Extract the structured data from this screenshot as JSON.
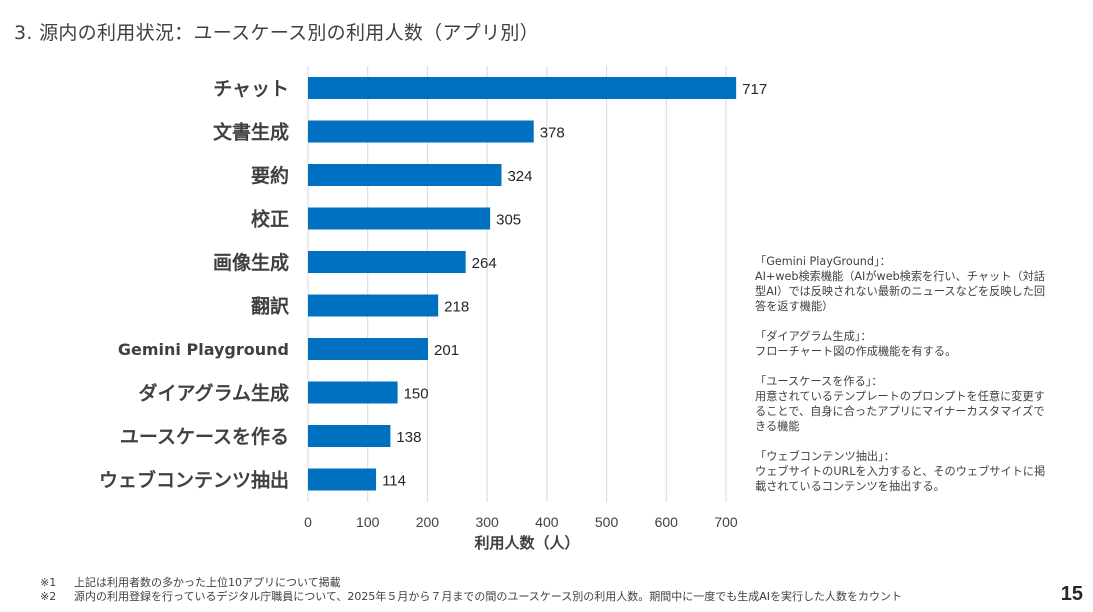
{
  "slide": {
    "title": "3. 源内の利用状況：ユースケース別の利用人数（アプリ別）",
    "page_number": "15",
    "bar_color": "#0070C0"
  },
  "chart_data": {
    "type": "bar",
    "orientation": "horizontal",
    "title": "",
    "categories": [
      "チャット",
      "文書生成",
      "要約",
      "校正",
      "画像生成",
      "翻訳",
      "Gemini Playground",
      "ダイアグラム生成",
      "ユースケースを作る",
      "ウェブコンテンツ抽出"
    ],
    "values": [
      717,
      378,
      324,
      305,
      264,
      218,
      201,
      150,
      138,
      114
    ],
    "value_labels": [
      "717",
      "378",
      "324",
      "305",
      "264",
      "218",
      "201",
      "150",
      "138",
      "114"
    ],
    "xlabel": "利用人数（人）",
    "ylabel": "",
    "xlim": [
      0,
      700
    ],
    "xticks": [
      0,
      100,
      200,
      300,
      400,
      500,
      600,
      700
    ],
    "xtick_labels": [
      "0",
      "100",
      "200",
      "300",
      "400",
      "500",
      "600",
      "700"
    ],
    "grid": "vertical",
    "legend": "none"
  },
  "notes": [
    {
      "title": "「Gemini PlayGround」：",
      "body": "AI+web検索機能（AIがweb検索を行い、チャット（対話型AI）では反映されない最新のニュースなどを反映した回答を返す機能）"
    },
    {
      "title": "「ダイアグラム生成」：",
      "body": "フローチャート図の作成機能を有する。"
    },
    {
      "title": "「ユースケースを作る」：",
      "body": "用意されているテンプレートのプロンプトを任意に変更することで、自身に合ったアプリにマイナーカスタマイズできる機能"
    },
    {
      "title": "「ウェブコンテンツ抽出」：",
      "body": "ウェブサイトのURLを入力すると、そのウェブサイトに掲載されているコンテンツを抽出する。"
    }
  ],
  "footnotes": [
    {
      "mark": "※1",
      "text": "上記は利用者数の多かった上位10アプリについて掲載"
    },
    {
      "mark": "※2",
      "text": "源内の利用登録を行っているデジタル庁職員について、2025年５月から７月までの間のユースケース別の利用人数。期間中に一度でも生成AIを実行した人数をカウント"
    }
  ]
}
